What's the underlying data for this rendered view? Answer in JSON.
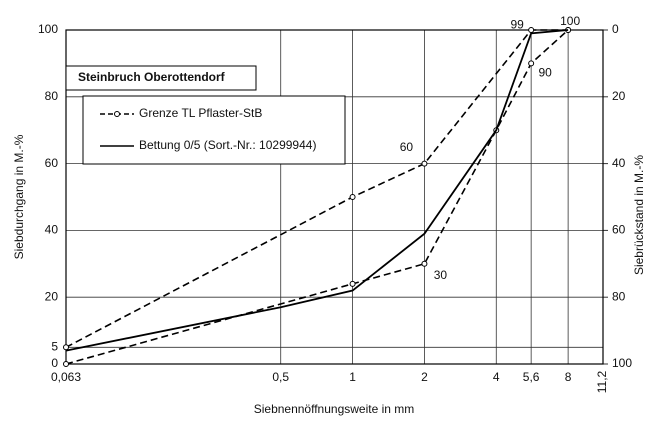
{
  "chart_data": {
    "type": "line",
    "box_title": "Steinbruch Oberottendorf",
    "ylabel": "Siebdurchgang  in M.-%",
    "y2label": "Siebrückstand  in M.-%",
    "xlabel": "Siebnennöffnungsweite in mm",
    "xscale": "log",
    "grid": true,
    "xlim": [
      0.063,
      11.2
    ],
    "xticks": [
      {
        "value": 0.063,
        "label": "0,063"
      },
      {
        "value": 0.5,
        "label": "0,5"
      },
      1,
      2,
      4,
      {
        "value": 5.6,
        "label": "5,6"
      },
      8,
      {
        "value": 11.2,
        "label": "11,2"
      }
    ],
    "ylim": [
      0,
      100
    ],
    "yticks": [
      0,
      5,
      20,
      40,
      60,
      80,
      100
    ],
    "y2lim": [
      100,
      0
    ],
    "y2ticks": [
      0,
      20,
      40,
      60,
      80,
      100
    ],
    "series": [
      {
        "name": "Grenze TL Pflaster-StB",
        "color": "#000000",
        "dashed": true,
        "marker": true,
        "x": [
          0.063,
          1,
          2,
          5.6,
          8
        ],
        "values": [
          5,
          50,
          60,
          100,
          100
        ]
      },
      {
        "color": "#000000",
        "dashed": true,
        "marker": true,
        "x": [
          0.063,
          1,
          2,
          4,
          5.6,
          8
        ],
        "values": [
          0,
          24,
          30,
          70,
          90,
          100
        ]
      },
      {
        "name": "Bettung 0/5 (Sort.-Nr.: 10299944)",
        "color": "#000000",
        "dashed": false,
        "marker": false,
        "x": [
          0.063,
          0.5,
          1,
          2,
          4,
          5.6,
          8
        ],
        "values": [
          4,
          17,
          22,
          39,
          70,
          99,
          100
        ]
      }
    ],
    "annotations": [
      {
        "text": "99",
        "x": 5.6,
        "y": 99
      },
      {
        "text": "100",
        "x": 8,
        "y": 100
      },
      {
        "text": "90",
        "x": 5.6,
        "y": 90
      },
      {
        "text": "60",
        "x": 2,
        "y": 60
      },
      {
        "text": "30",
        "x": 2,
        "y": 30
      }
    ]
  }
}
